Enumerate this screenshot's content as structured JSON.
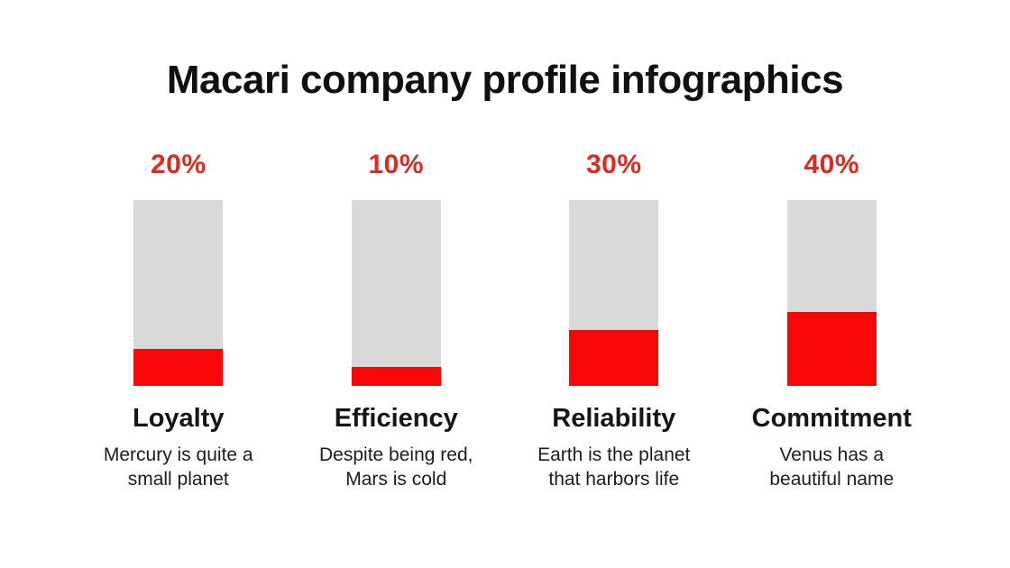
{
  "header": {
    "title": "Macari company profile infographics"
  },
  "colors": {
    "background": "#ffffff",
    "bar_fill_red": "#f90808",
    "percent_label_red": "#e02a20",
    "bar_track_gray": "#d9d9d9",
    "text_black": "#161616"
  },
  "chart_data": {
    "type": "bar",
    "title": "Macari company profile infographics",
    "unit": "%",
    "ylim": [
      0,
      100
    ],
    "orientation": "vertical",
    "grid": false,
    "legend": false,
    "categories": [
      "Loyalty",
      "Efficiency",
      "Reliability",
      "Commitment"
    ],
    "values": [
      20,
      10,
      30,
      40
    ],
    "bars": [
      {
        "percent_label": "20%",
        "value": 20,
        "label": "Loyalty",
        "description": "Mercury is quite a\nsmall planet"
      },
      {
        "percent_label": "10%",
        "value": 10,
        "label": "Efficiency",
        "description": "Despite being red,\nMars is cold"
      },
      {
        "percent_label": "30%",
        "value": 30,
        "label": "Reliability",
        "description": "Earth is the planet\nthat harbors life"
      },
      {
        "percent_label": "40%",
        "value": 40,
        "label": "Commitment",
        "description": "Venus has a\nbeautiful name"
      }
    ]
  }
}
